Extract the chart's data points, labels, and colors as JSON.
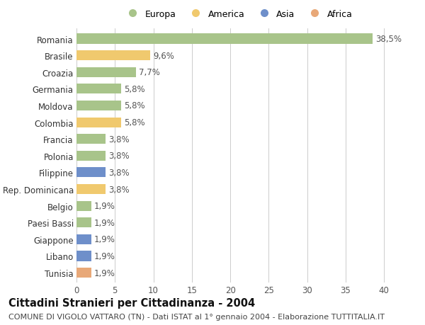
{
  "countries": [
    "Romania",
    "Brasile",
    "Croazia",
    "Germania",
    "Moldova",
    "Colombia",
    "Francia",
    "Polonia",
    "Filippine",
    "Rep. Dominicana",
    "Belgio",
    "Paesi Bassi",
    "Giappone",
    "Libano",
    "Tunisia"
  ],
  "values": [
    38.5,
    9.6,
    7.7,
    5.8,
    5.8,
    5.8,
    3.8,
    3.8,
    3.8,
    3.8,
    1.9,
    1.9,
    1.9,
    1.9,
    1.9
  ],
  "labels": [
    "38,5%",
    "9,6%",
    "7,7%",
    "5,8%",
    "5,8%",
    "5,8%",
    "3,8%",
    "3,8%",
    "3,8%",
    "3,8%",
    "1,9%",
    "1,9%",
    "1,9%",
    "1,9%",
    "1,9%"
  ],
  "continent": [
    "Europa",
    "America",
    "Europa",
    "Europa",
    "Europa",
    "America",
    "Europa",
    "Europa",
    "Asia",
    "America",
    "Europa",
    "Europa",
    "Asia",
    "Asia",
    "Africa"
  ],
  "colors": {
    "Europa": "#a8c48a",
    "America": "#f0c96e",
    "Asia": "#6e8fca",
    "Africa": "#e8a878"
  },
  "legend_order": [
    "Europa",
    "America",
    "Asia",
    "Africa"
  ],
  "xlim": [
    0,
    42
  ],
  "xticks": [
    0,
    5,
    10,
    15,
    20,
    25,
    30,
    35,
    40
  ],
  "title": "Cittadini Stranieri per Cittadinanza - 2004",
  "subtitle": "COMUNE DI VIGOLO VATTARO (TN) - Dati ISTAT al 1° gennaio 2004 - Elaborazione TUTTITALIA.IT",
  "bg_color": "#ffffff",
  "grid_color": "#cccccc",
  "bar_height": 0.6,
  "title_fontsize": 10.5,
  "subtitle_fontsize": 8,
  "label_fontsize": 8.5,
  "tick_fontsize": 8.5,
  "legend_fontsize": 9
}
